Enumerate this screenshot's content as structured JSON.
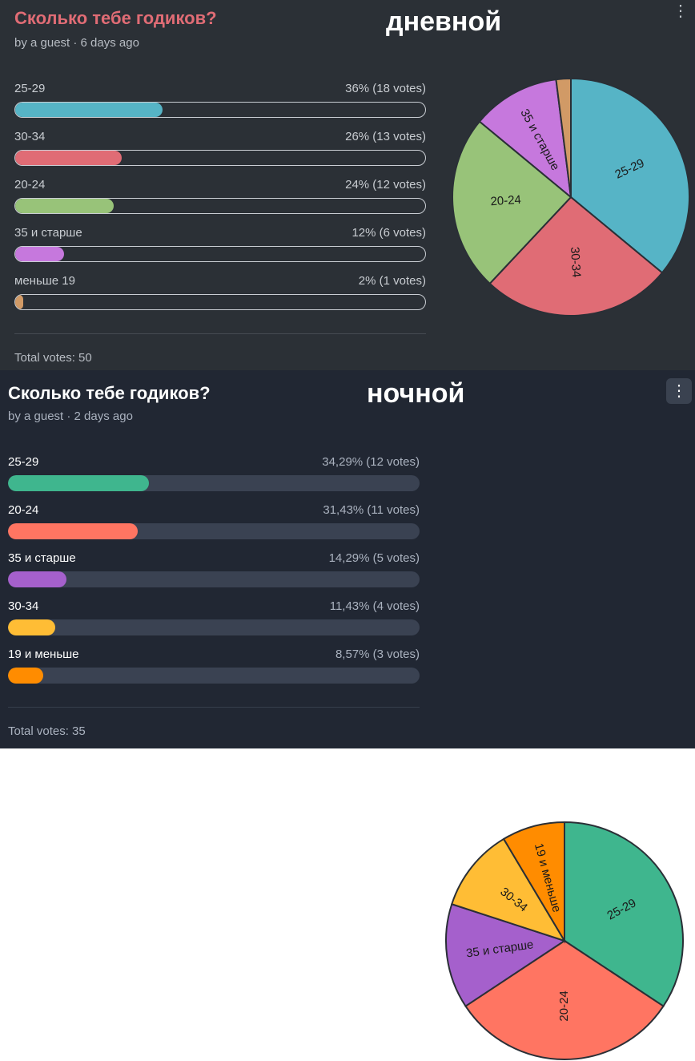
{
  "day": {
    "title": "Сколько тебе годиков?",
    "meta": "by a guest · 6 days ago",
    "tag": "дневной",
    "more_icon": "⋮",
    "total": "Total votes: 50",
    "options": [
      {
        "label": "25-29",
        "pct_text": "36% (18 votes)",
        "value": 36,
        "color": "#56b4c6",
        "slice_label": "25-29"
      },
      {
        "label": "30-34",
        "pct_text": "26% (13 votes)",
        "value": 26,
        "color": "#e06c75",
        "slice_label": "30-34"
      },
      {
        "label": "20-24",
        "pct_text": "24% (12 votes)",
        "value": 24,
        "color": "#98c379",
        "slice_label": "20-24"
      },
      {
        "label": "35 и старше",
        "pct_text": "12% (6 votes)",
        "value": 12,
        "color": "#c678dd",
        "slice_label": "35 и старше"
      },
      {
        "label": "меньше 19",
        "pct_text": "2% (1 votes)",
        "value": 2,
        "color": "#d19a66",
        "slice_label": ""
      }
    ]
  },
  "night": {
    "title": "Сколько тебе годиков?",
    "meta": "by a guest · 2 days ago",
    "tag": "ночной",
    "more_icon": "⋮",
    "total": "Total votes: 35",
    "options": [
      {
        "label": "25-29",
        "pct_text": "34,29% (12 votes)",
        "value": 34.29,
        "color": "#3fb68e",
        "slice_label": "25-29"
      },
      {
        "label": "20-24",
        "pct_text": "31,43% (11 votes)",
        "value": 31.43,
        "color": "#ff7562",
        "slice_label": "20-24"
      },
      {
        "label": "35 и старше",
        "pct_text": "14,29% (5 votes)",
        "value": 14.29,
        "color": "#a560cc",
        "slice_label": "35 и старше"
      },
      {
        "label": "30-34",
        "pct_text": "11,43% (4 votes)",
        "value": 11.43,
        "color": "#ffbd35",
        "slice_label": "30-34"
      },
      {
        "label": "19 и меньше",
        "pct_text": "8,57% (3 votes)",
        "value": 8.57,
        "color": "#ff8c00",
        "slice_label": "19 и меньше"
      }
    ]
  }
}
